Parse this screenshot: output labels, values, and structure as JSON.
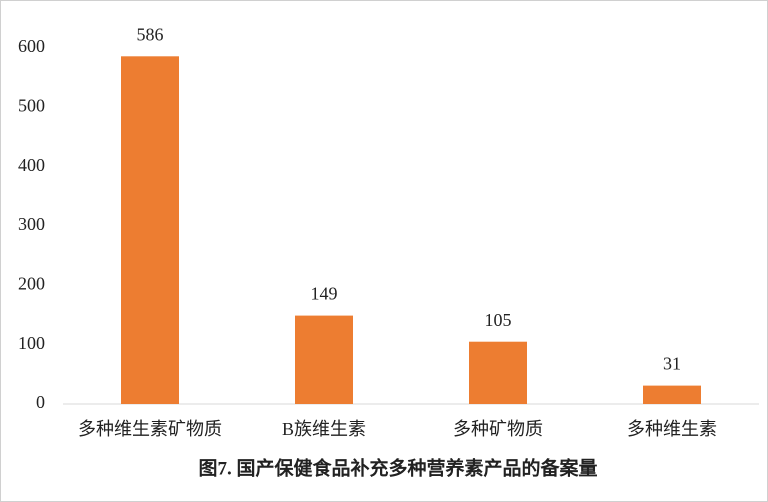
{
  "chart_data": {
    "type": "bar",
    "title": "图7. 国产保健食品补充多种营养素产品的备案量",
    "categories": [
      "多种维生素矿物质",
      "B族维生素",
      "多种矿物质",
      "多种维生素"
    ],
    "values": [
      586,
      149,
      105,
      31
    ],
    "color": "#ed7d31",
    "ylim": [
      0,
      600
    ],
    "yticks": [
      0,
      100,
      200,
      300,
      400,
      500,
      600
    ],
    "grid": false
  }
}
